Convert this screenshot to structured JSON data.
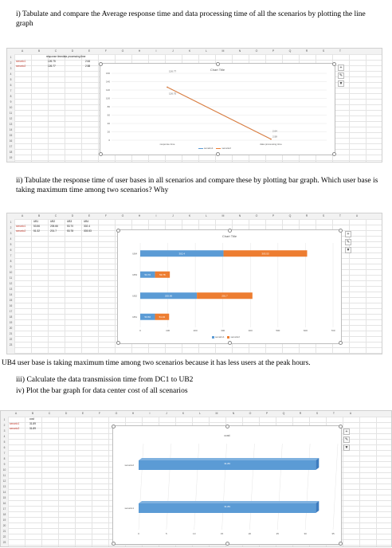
{
  "q1": "i) Tabulate and compare the Average response time and data processing time of all the scenarios by plotting the line graph",
  "q2": "ii) Tabulate the response time of user bases in all scenarios and compare these by plotting bar graph. Which user base is taking maximum time among two scenarios? Why",
  "answer": "UB4 user base is taking maximum time among two scenarios because it has less users at the peak hours.",
  "q3": "iii) Calculate the data transmission time from DC1 to UB2",
  "q4": "iv) Plot the bar graph for data center cost of all scenarios",
  "columns20": [
    "A",
    "B",
    "C",
    "D",
    "E",
    "F",
    "G",
    "H",
    "I",
    "J",
    "K",
    "L",
    "M",
    "N",
    "O",
    "P",
    "Q",
    "R",
    "S",
    "T"
  ],
  "columns21": [
    "A",
    "B",
    "C",
    "D",
    "E",
    "F",
    "G",
    "H",
    "I",
    "J",
    "K",
    "L",
    "M",
    "N",
    "O",
    "P",
    "Q",
    "R",
    "S",
    "T",
    "U"
  ],
  "shot1": {
    "header": [
      "response time",
      "data processing time"
    ],
    "rows": [
      [
        "senario1",
        "126.75",
        "2.64"
      ],
      [
        "senario2",
        "126.77",
        "2.58"
      ]
    ],
    "chart": {
      "title": "Chart Title",
      "yticks": [
        "160",
        "140",
        "120",
        "100",
        "80",
        "60",
        "40",
        "20",
        "0"
      ],
      "point_labels": [
        "126.75",
        "126.77",
        "2.64",
        "2.58"
      ],
      "xcats": [
        "response time",
        "data processing time"
      ],
      "legend": [
        "senario1",
        "senario2"
      ],
      "colors": [
        "#5b9bd5",
        "#ed7d31"
      ]
    }
  },
  "shot2": {
    "header": [
      "UB1",
      "UB2",
      "UB3",
      "UB4"
    ],
    "rows": [
      [
        "senario1",
        "53.56",
        "205.66",
        "53.70",
        "302.4"
      ],
      [
        "senario2",
        "51.32",
        "201.7",
        "53.78",
        "303.53"
      ]
    ],
    "chart": {
      "title": "Chart Title",
      "cats": [
        "UB4",
        "UB3",
        "UB2",
        "UB1"
      ],
      "bar_labels": [
        [
          "302.4",
          "303.53"
        ],
        [
          "53.70",
          "53.78"
        ],
        [
          "205.66",
          "201.7"
        ],
        [
          "53.56",
          "51.32"
        ]
      ],
      "xticks": [
        "0",
        "100",
        "200",
        "300",
        "400",
        "500",
        "600",
        "700"
      ],
      "legend": [
        "senario1",
        "senario2"
      ],
      "colors": [
        "#5b9bd5",
        "#ed7d31"
      ]
    }
  },
  "shot3": {
    "header": [
      "cost"
    ],
    "rows": [
      [
        "senario1",
        "31.89"
      ],
      [
        "senario2",
        "31.89"
      ]
    ],
    "chart": {
      "title": "cost",
      "cats": [
        "senario2",
        "senario1"
      ],
      "bar_labels": [
        "31.89",
        "31.89"
      ],
      "xticks": [
        "0",
        "5",
        "10",
        "15",
        "20",
        "25",
        "30",
        "35"
      ],
      "color": "#5b9bd5"
    }
  },
  "chart_data": [
    {
      "type": "line",
      "title": "Chart Title",
      "categories": [
        "response time",
        "data processing time"
      ],
      "series": [
        {
          "name": "senario1",
          "values": [
            126.75,
            2.64
          ]
        },
        {
          "name": "senario2",
          "values": [
            126.77,
            2.58
          ]
        }
      ],
      "ylim": [
        0,
        160
      ],
      "legend": "bottom"
    },
    {
      "type": "bar",
      "title": "Chart Title",
      "orientation": "horizontal",
      "stacked": true,
      "categories": [
        "UB1",
        "UB2",
        "UB3",
        "UB4"
      ],
      "series": [
        {
          "name": "senario1",
          "values": [
            53.56,
            205.66,
            53.7,
            302.4
          ]
        },
        {
          "name": "senario2",
          "values": [
            51.32,
            201.7,
            53.78,
            303.53
          ]
        }
      ],
      "xlim": [
        0,
        700
      ],
      "legend": "bottom"
    },
    {
      "type": "bar",
      "title": "cost",
      "orientation": "horizontal",
      "categories": [
        "senario1",
        "senario2"
      ],
      "values": [
        31.89,
        31.89
      ],
      "xlim": [
        0,
        35
      ]
    }
  ]
}
